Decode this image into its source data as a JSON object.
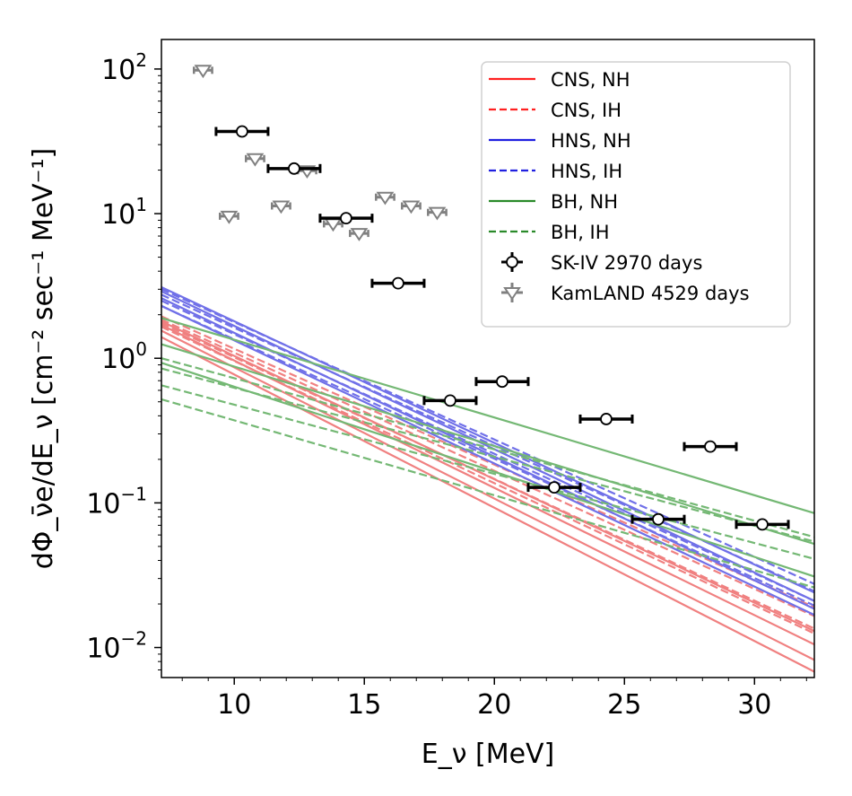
{
  "chart_data": {
    "type": "line",
    "title": "",
    "xlabel": "E_ν [MeV]",
    "ylabel": "dΦ_ν̄e/dE_ν [cm⁻² sec⁻¹ MeV⁻¹]",
    "xlim": [
      7.2,
      32.3
    ],
    "ylim": [
      0.0062,
      160
    ],
    "yscale": "log",
    "grid": false,
    "legend_position": "top-right",
    "x_ticks": [
      10,
      15,
      20,
      25,
      30
    ],
    "x_tick_labels": [
      "10",
      "15",
      "20",
      "25",
      "30"
    ],
    "y_ticks": [
      0.01,
      0.1,
      1,
      10,
      100
    ],
    "y_tick_labels": [
      {
        "base": "10",
        "exp": "−2"
      },
      {
        "base": "10",
        "exp": "−1"
      },
      {
        "base": "10",
        "exp": "0"
      },
      {
        "base": "10",
        "exp": "1"
      },
      {
        "base": "10",
        "exp": "2"
      }
    ],
    "colors": {
      "CNS": "#f08080",
      "HNS": "#7070e8",
      "BH": "#74b874",
      "SK": "#000000",
      "KamLAND": "#808080"
    },
    "legend_colors": {
      "CNS": "#ff2020",
      "HNS": "#2020e0",
      "BH": "#2a8a2a"
    },
    "series": [
      {
        "legend": "cns-nh",
        "group": "CNS",
        "style": "solid",
        "x": [
          7.2,
          32.3
        ],
        "y": [
          1.8,
          0.013
        ]
      },
      {
        "group": "CNS",
        "style": "solid",
        "x": [
          7.2,
          32.3
        ],
        "y": [
          1.7,
          0.0105
        ]
      },
      {
        "group": "CNS",
        "style": "solid",
        "x": [
          7.2,
          32.3
        ],
        "y": [
          1.55,
          0.0082
        ]
      },
      {
        "group": "CNS",
        "style": "solid",
        "x": [
          7.2,
          32.3
        ],
        "y": [
          1.4,
          0.0068
        ]
      },
      {
        "legend": "cns-ih",
        "group": "CNS",
        "style": "dashed",
        "x": [
          7.2,
          32.3
        ],
        "y": [
          1.95,
          0.019
        ]
      },
      {
        "group": "CNS",
        "style": "dashed",
        "x": [
          7.2,
          32.3
        ],
        "y": [
          1.85,
          0.0165
        ]
      },
      {
        "group": "CNS",
        "style": "dashed",
        "x": [
          7.2,
          32.3
        ],
        "y": [
          1.75,
          0.0135
        ]
      },
      {
        "group": "CNS",
        "style": "dashed",
        "x": [
          7.2,
          32.3
        ],
        "y": [
          1.65,
          0.0125
        ]
      },
      {
        "legend": "hns-nh",
        "group": "HNS",
        "style": "solid",
        "x": [
          7.2,
          32.3
        ],
        "y": [
          3.1,
          0.024
        ]
      },
      {
        "group": "HNS",
        "style": "solid",
        "x": [
          7.2,
          32.3
        ],
        "y": [
          2.9,
          0.021
        ]
      },
      {
        "group": "HNS",
        "style": "solid",
        "x": [
          7.2,
          32.3
        ],
        "y": [
          2.6,
          0.0185
        ]
      },
      {
        "group": "HNS",
        "style": "solid",
        "x": [
          7.2,
          32.3
        ],
        "y": [
          2.3,
          0.0168
        ]
      },
      {
        "legend": "hns-ih",
        "group": "HNS",
        "style": "dashed",
        "x": [
          7.2,
          32.3
        ],
        "y": [
          3.0,
          0.0275
        ]
      },
      {
        "group": "HNS",
        "style": "dashed",
        "x": [
          7.2,
          32.3
        ],
        "y": [
          2.75,
          0.0245
        ]
      },
      {
        "group": "HNS",
        "style": "dashed",
        "x": [
          7.2,
          32.3
        ],
        "y": [
          2.5,
          0.021
        ]
      },
      {
        "group": "HNS",
        "style": "dashed",
        "x": [
          7.2,
          32.3
        ],
        "y": [
          2.3,
          0.0195
        ]
      },
      {
        "legend": "bh-nh",
        "group": "BH",
        "style": "solid",
        "x": [
          7.2,
          32.3
        ],
        "y": [
          1.9,
          0.085
        ]
      },
      {
        "group": "BH",
        "style": "solid",
        "x": [
          7.2,
          32.3
        ],
        "y": [
          1.25,
          0.052
        ]
      },
      {
        "group": "BH",
        "style": "solid",
        "x": [
          7.2,
          32.3
        ],
        "y": [
          0.93,
          0.031
        ]
      },
      {
        "legend": "bh-ih",
        "group": "BH",
        "style": "dashed",
        "x": [
          7.2,
          32.3
        ],
        "y": [
          1.0,
          0.058
        ]
      },
      {
        "group": "BH",
        "style": "dashed",
        "x": [
          7.2,
          32.3
        ],
        "y": [
          0.85,
          0.054
        ]
      },
      {
        "group": "BH",
        "style": "dashed",
        "x": [
          7.2,
          32.3
        ],
        "y": [
          0.65,
          0.041
        ]
      },
      {
        "group": "BH",
        "style": "dashed",
        "x": [
          7.2,
          32.3
        ],
        "y": [
          0.52,
          0.026
        ]
      }
    ],
    "sk_iv": {
      "x": [
        10.3,
        12.3,
        14.3,
        16.3,
        18.3,
        20.3,
        22.3,
        24.3,
        26.3,
        28.3,
        30.3
      ],
      "y": [
        37.0,
        20.5,
        9.3,
        3.3,
        0.51,
        0.69,
        0.128,
        0.38,
        0.077,
        0.245,
        0.071
      ],
      "xerr": 1.0
    },
    "kamland": {
      "x": [
        8.8,
        9.8,
        10.8,
        11.8,
        12.8,
        13.8,
        14.8,
        15.8,
        16.8,
        17.8
      ],
      "y": [
        98.0,
        9.6,
        24.0,
        11.3,
        19.8,
        8.5,
        7.3,
        13.0,
        11.3,
        10.2
      ],
      "xerr": 0.35
    },
    "legend": [
      {
        "key": "cns-nh",
        "label": "CNS, NH",
        "kind": "line",
        "style": "solid",
        "color_group": "CNS"
      },
      {
        "key": "cns-ih",
        "label": "CNS, IH",
        "kind": "line",
        "style": "dashed",
        "color_group": "CNS"
      },
      {
        "key": "hns-nh",
        "label": "HNS, NH",
        "kind": "line",
        "style": "solid",
        "color_group": "HNS"
      },
      {
        "key": "hns-ih",
        "label": "HNS, IH",
        "kind": "line",
        "style": "dashed",
        "color_group": "HNS"
      },
      {
        "key": "bh-nh",
        "label": "BH, NH",
        "kind": "line",
        "style": "solid",
        "color_group": "BH"
      },
      {
        "key": "bh-ih",
        "label": "BH, IH",
        "kind": "line",
        "style": "dashed",
        "color_group": "BH"
      },
      {
        "key": "sk-iv",
        "label": "SK-IV 2970 days",
        "kind": "circle",
        "color_group": "SK"
      },
      {
        "key": "kamland",
        "label": "KamLAND 4529 days",
        "kind": "triangle",
        "color_group": "KamLAND"
      }
    ]
  }
}
